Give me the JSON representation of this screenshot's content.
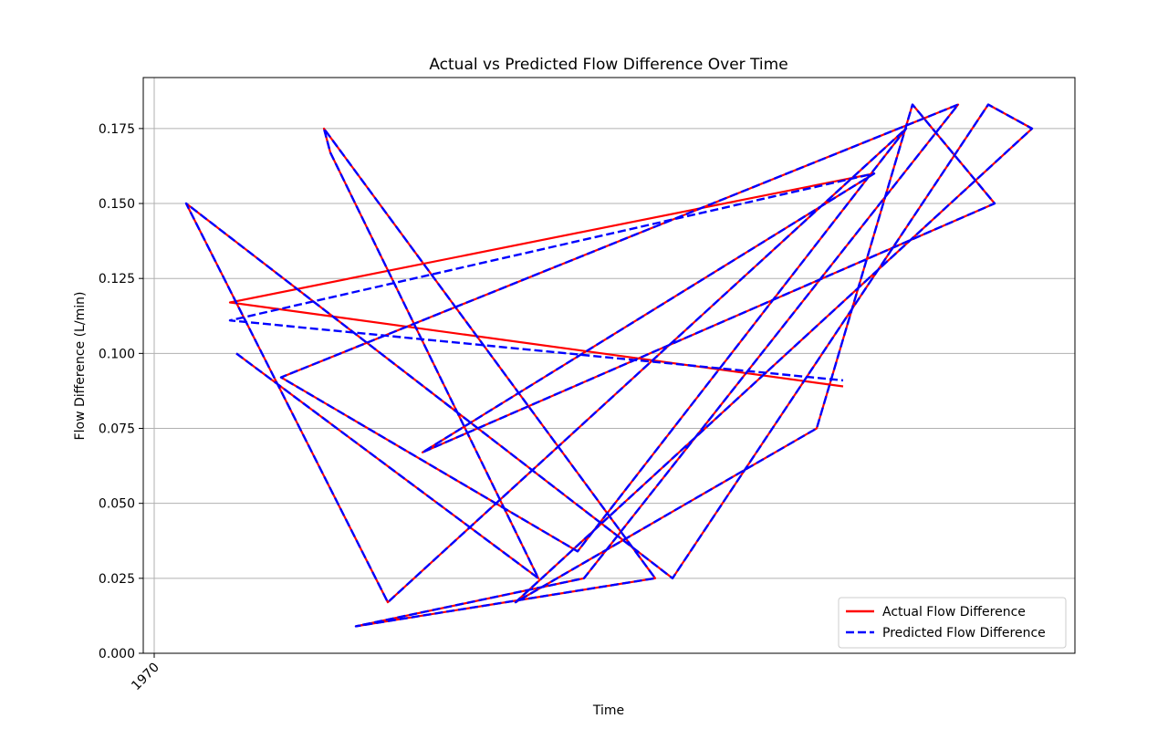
{
  "chart_data": {
    "type": "line",
    "title": "Actual vs Predicted Flow Difference Over Time",
    "xlabel": "Time",
    "ylabel": "Flow Difference (L/min)",
    "x_tick_labels": [
      "1970"
    ],
    "y_tick_labels": [
      "0.000",
      "0.025",
      "0.050",
      "0.075",
      "0.100",
      "0.125",
      "0.150",
      "0.175"
    ],
    "ylim": [
      0.0,
      0.192
    ],
    "grid": "horizontal",
    "legend_position": "lower-right",
    "colors": {
      "actual": "#ff0000",
      "predicted": "#0000ff"
    },
    "legend": [
      {
        "label": "Actual Flow Difference",
        "style": "solid",
        "color": "#ff0000"
      },
      {
        "label": "Predicted Flow Difference",
        "style": "dashed",
        "color": "#0000ff"
      }
    ],
    "series": [
      {
        "name": "Actual Flow Difference",
        "y": [
          0.1,
          0.025,
          0.167,
          0.175,
          0.025,
          0.009,
          0.025,
          0.183,
          0.092,
          0.034,
          0.175,
          0.017,
          0.15,
          0.025,
          0.183,
          0.175,
          0.017,
          0.075,
          0.183,
          0.15,
          0.067,
          0.16,
          0.117,
          0.089
        ]
      },
      {
        "name": "Predicted Flow Difference",
        "y": [
          0.1,
          0.025,
          0.167,
          0.175,
          0.025,
          0.009,
          0.025,
          0.183,
          0.092,
          0.034,
          0.175,
          0.017,
          0.15,
          0.025,
          0.183,
          0.175,
          0.017,
          0.075,
          0.183,
          0.15,
          0.067,
          0.16,
          0.111,
          0.091
        ]
      }
    ]
  }
}
